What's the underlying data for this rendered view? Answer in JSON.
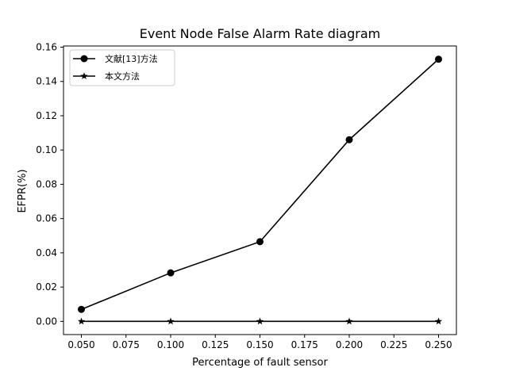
{
  "chart_data": {
    "type": "line",
    "title": "Event Node False Alarm Rate diagram",
    "xlabel": "Percentage of fault sensor",
    "ylabel": "EFPR(%)",
    "xlim": [
      0.04,
      0.26
    ],
    "ylim": [
      -0.0077,
      0.1607
    ],
    "xticks": [
      "0.050",
      "0.075",
      "0.100",
      "0.125",
      "0.150",
      "0.175",
      "0.200",
      "0.225",
      "0.250"
    ],
    "yticks": [
      "0.00",
      "0.02",
      "0.04",
      "0.06",
      "0.08",
      "0.10",
      "0.12",
      "0.14",
      "0.16"
    ],
    "x": [
      0.05,
      0.1,
      0.15,
      0.2,
      0.25
    ],
    "series": [
      {
        "name": "文献[13]方法",
        "marker": "circle",
        "values": [
          0.007,
          0.0283,
          0.0465,
          0.106,
          0.153
        ]
      },
      {
        "name": "本文方法",
        "marker": "star",
        "values": [
          0.0,
          0.0,
          0.0,
          0.0,
          0.0
        ]
      }
    ],
    "grid": false,
    "legend_position": "top-left",
    "line_color": "#000000"
  }
}
